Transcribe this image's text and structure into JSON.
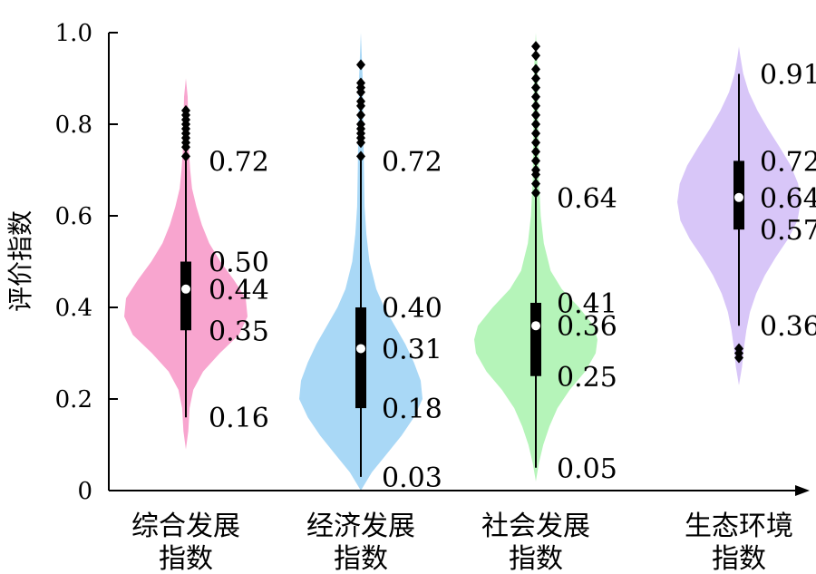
{
  "chart_data": {
    "type": "violin",
    "title": "",
    "xlabel": "",
    "ylabel": "评价指数",
    "ylim": [
      0,
      1.0
    ],
    "y_ticks": [
      {
        "value": 0,
        "label": "0"
      },
      {
        "value": 0.2,
        "label": "0.2"
      },
      {
        "value": 0.4,
        "label": "0.4"
      },
      {
        "value": 0.6,
        "label": "0.6"
      },
      {
        "value": 0.8,
        "label": "0.8"
      },
      {
        "value": 1.0,
        "label": "1.0"
      }
    ],
    "series": [
      {
        "category_lines": [
          "综合发展",
          "指数"
        ],
        "color": "#F8A5CF",
        "whisker_low": 0.16,
        "q1": 0.35,
        "median": 0.44,
        "q3": 0.5,
        "whisker_high": 0.72,
        "stat_labels": {
          "whisker_high": "0.72",
          "q3": "0.50",
          "median": "0.44",
          "q1": "0.35",
          "whisker_low": "0.16"
        },
        "outliers": [
          0.73,
          0.75,
          0.76,
          0.77,
          0.78,
          0.79,
          0.8,
          0.81,
          0.82,
          0.83
        ],
        "density": [
          [
            0.09,
            0.0
          ],
          [
            0.13,
            0.04
          ],
          [
            0.18,
            0.06
          ],
          [
            0.22,
            0.12
          ],
          [
            0.26,
            0.28
          ],
          [
            0.3,
            0.55
          ],
          [
            0.34,
            0.86
          ],
          [
            0.38,
            1.0
          ],
          [
            0.42,
            0.97
          ],
          [
            0.46,
            0.78
          ],
          [
            0.5,
            0.56
          ],
          [
            0.54,
            0.38
          ],
          [
            0.58,
            0.26
          ],
          [
            0.62,
            0.17
          ],
          [
            0.66,
            0.1
          ],
          [
            0.7,
            0.07
          ],
          [
            0.74,
            0.05
          ],
          [
            0.8,
            0.04
          ],
          [
            0.86,
            0.03
          ],
          [
            0.9,
            0.0
          ]
        ]
      },
      {
        "category_lines": [
          "经济发展",
          "指数"
        ],
        "color": "#A9D8F6",
        "whisker_low": 0.03,
        "q1": 0.18,
        "median": 0.31,
        "q3": 0.4,
        "whisker_high": 0.72,
        "stat_labels": {
          "whisker_high": "0.72",
          "q3": "0.40",
          "median": "0.31",
          "q1": "0.18",
          "whisker_low": "0.03"
        },
        "outliers": [
          0.73,
          0.76,
          0.77,
          0.78,
          0.79,
          0.8,
          0.82,
          0.84,
          0.85,
          0.87,
          0.88,
          0.89,
          0.93
        ],
        "density": [
          [
            0.0,
            0.0
          ],
          [
            0.04,
            0.18
          ],
          [
            0.08,
            0.42
          ],
          [
            0.12,
            0.66
          ],
          [
            0.16,
            0.86
          ],
          [
            0.2,
            1.0
          ],
          [
            0.24,
            0.97
          ],
          [
            0.28,
            0.86
          ],
          [
            0.32,
            0.72
          ],
          [
            0.36,
            0.55
          ],
          [
            0.4,
            0.38
          ],
          [
            0.44,
            0.25
          ],
          [
            0.5,
            0.14
          ],
          [
            0.56,
            0.09
          ],
          [
            0.62,
            0.06
          ],
          [
            0.7,
            0.05
          ],
          [
            0.8,
            0.04
          ],
          [
            0.9,
            0.03
          ],
          [
            1.0,
            0.0
          ]
        ]
      },
      {
        "category_lines": [
          "社会发展",
          "指数"
        ],
        "color": "#B5F4B9",
        "whisker_low": 0.05,
        "q1": 0.25,
        "median": 0.36,
        "q3": 0.41,
        "whisker_high": 0.64,
        "stat_labels": {
          "whisker_high": "0.64",
          "q3": "0.41",
          "median": "0.36",
          "q1": "0.25",
          "whisker_low": "0.05"
        },
        "outliers": [
          0.65,
          0.67,
          0.69,
          0.7,
          0.72,
          0.74,
          0.76,
          0.78,
          0.8,
          0.82,
          0.84,
          0.86,
          0.88,
          0.9,
          0.92,
          0.95,
          0.97
        ],
        "density": [
          [
            0.02,
            0.0
          ],
          [
            0.06,
            0.05
          ],
          [
            0.1,
            0.12
          ],
          [
            0.14,
            0.22
          ],
          [
            0.18,
            0.35
          ],
          [
            0.22,
            0.55
          ],
          [
            0.26,
            0.8
          ],
          [
            0.3,
            0.97
          ],
          [
            0.33,
            1.0
          ],
          [
            0.36,
            0.94
          ],
          [
            0.4,
            0.7
          ],
          [
            0.44,
            0.42
          ],
          [
            0.48,
            0.24
          ],
          [
            0.54,
            0.13
          ],
          [
            0.6,
            0.08
          ],
          [
            0.68,
            0.05
          ],
          [
            0.8,
            0.04
          ],
          [
            0.92,
            0.03
          ],
          [
            1.0,
            0.0
          ]
        ]
      },
      {
        "category_lines": [
          "生态环境",
          "指数"
        ],
        "color": "#D8C6F8",
        "whisker_low": 0.36,
        "q1": 0.57,
        "median": 0.64,
        "q3": 0.72,
        "whisker_high": 0.91,
        "stat_labels": {
          "whisker_high": "0.91",
          "q3": "0.72",
          "median": "0.64",
          "q1": "0.57",
          "whisker_low": "0.36"
        },
        "outliers": [
          0.29,
          0.3,
          0.31
        ],
        "density": [
          [
            0.23,
            0.0
          ],
          [
            0.27,
            0.05
          ],
          [
            0.31,
            0.08
          ],
          [
            0.35,
            0.12
          ],
          [
            0.39,
            0.18
          ],
          [
            0.43,
            0.28
          ],
          [
            0.47,
            0.42
          ],
          [
            0.51,
            0.6
          ],
          [
            0.55,
            0.8
          ],
          [
            0.59,
            0.95
          ],
          [
            0.63,
            1.0
          ],
          [
            0.67,
            0.96
          ],
          [
            0.71,
            0.84
          ],
          [
            0.75,
            0.66
          ],
          [
            0.79,
            0.47
          ],
          [
            0.83,
            0.3
          ],
          [
            0.87,
            0.16
          ],
          [
            0.91,
            0.07
          ],
          [
            0.95,
            0.02
          ],
          [
            0.97,
            0.0
          ]
        ]
      }
    ]
  }
}
